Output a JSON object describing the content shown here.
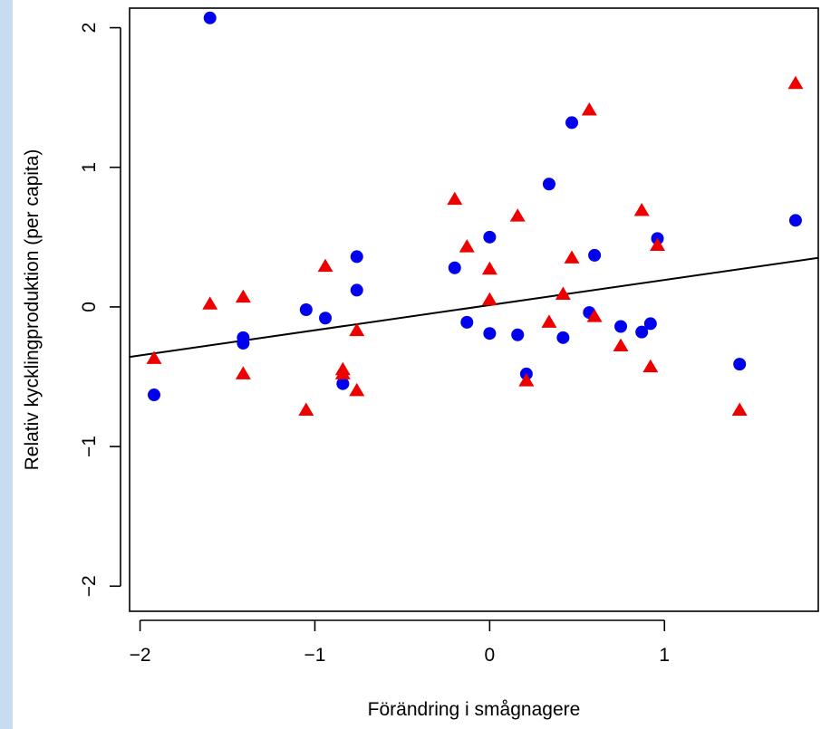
{
  "chart_data": {
    "type": "scatter",
    "title": "",
    "xlabel": "Förändring i smågnagere",
    "ylabel": "Relativ kycklingproduktion (per capita)",
    "xlim": [
      -2.06,
      1.88
    ],
    "ylim": [
      -2.18,
      2.14
    ],
    "xticks": [
      -2,
      -1,
      0,
      1
    ],
    "xtick_labels": [
      "−2",
      "−1",
      "0",
      "1"
    ],
    "yticks": [
      -2,
      -1,
      0,
      1,
      2
    ],
    "ytick_labels": [
      "−2",
      "−1",
      "0",
      "1",
      "2"
    ],
    "grid": false,
    "colors": {
      "circle_series": "#0000ee",
      "triangle_series": "#ee0000",
      "line": "#000000"
    },
    "series": [
      {
        "marker": "circle",
        "color": "#0000ee",
        "points": [
          [
            -1.92,
            -0.63
          ],
          [
            -1.6,
            2.07
          ],
          [
            -1.41,
            -0.22
          ],
          [
            -1.41,
            -0.26
          ],
          [
            -1.05,
            -0.02
          ],
          [
            -0.94,
            -0.08
          ],
          [
            -0.84,
            -0.55
          ],
          [
            -0.76,
            0.36
          ],
          [
            -0.76,
            0.12
          ],
          [
            -0.2,
            0.28
          ],
          [
            -0.13,
            -0.11
          ],
          [
            0.0,
            0.5
          ],
          [
            0.0,
            -0.19
          ],
          [
            0.16,
            -0.2
          ],
          [
            0.21,
            -0.48
          ],
          [
            0.34,
            0.88
          ],
          [
            0.42,
            -0.22
          ],
          [
            0.47,
            1.32
          ],
          [
            0.57,
            -0.04
          ],
          [
            0.6,
            0.37
          ],
          [
            0.75,
            -0.14
          ],
          [
            0.87,
            -0.18
          ],
          [
            0.92,
            -0.12
          ],
          [
            0.96,
            0.49
          ],
          [
            1.43,
            -0.41
          ],
          [
            1.75,
            0.62
          ]
        ]
      },
      {
        "marker": "triangle",
        "color": "#ee0000",
        "points": [
          [
            -1.92,
            -0.37
          ],
          [
            -1.6,
            0.02
          ],
          [
            -1.41,
            0.07
          ],
          [
            -1.41,
            -0.48
          ],
          [
            -1.05,
            -0.74
          ],
          [
            -0.94,
            0.29
          ],
          [
            -0.84,
            -0.45
          ],
          [
            -0.84,
            -0.48
          ],
          [
            -0.76,
            -0.17
          ],
          [
            -0.76,
            -0.6
          ],
          [
            -0.2,
            0.77
          ],
          [
            -0.13,
            0.43
          ],
          [
            0.0,
            0.27
          ],
          [
            0.0,
            0.05
          ],
          [
            0.16,
            0.65
          ],
          [
            0.21,
            -0.53
          ],
          [
            0.34,
            -0.11
          ],
          [
            0.42,
            0.09
          ],
          [
            0.47,
            0.35
          ],
          [
            0.57,
            1.41
          ],
          [
            0.6,
            -0.07
          ],
          [
            0.75,
            -0.28
          ],
          [
            0.87,
            0.69
          ],
          [
            0.92,
            -0.43
          ],
          [
            0.96,
            0.44
          ],
          [
            1.43,
            -0.74
          ],
          [
            1.75,
            1.6
          ]
        ]
      }
    ],
    "regression_line": {
      "intercept": 0.013,
      "slope": 0.18
    }
  }
}
